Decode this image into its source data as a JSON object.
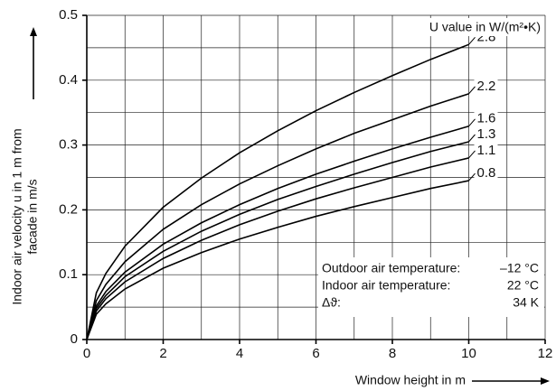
{
  "chart_data": {
    "type": "line",
    "legend_title": "U value in W/(m²•K)",
    "xlabel": "Window height in m",
    "ylabel": [
      "Indoor air velocity u in 1 m from",
      "facade in m/s"
    ],
    "x": [
      0,
      0.25,
      0.5,
      1,
      2,
      3,
      4,
      5,
      6,
      7,
      8,
      9,
      10
    ],
    "series": [
      {
        "name": "2.8",
        "color": "#000000",
        "values": [
          0,
          0.072,
          0.102,
          0.144,
          0.204,
          0.249,
          0.288,
          0.322,
          0.353,
          0.381,
          0.407,
          0.432,
          0.455
        ]
      },
      {
        "name": "2.2",
        "color": "#000000",
        "values": [
          0,
          0.06,
          0.085,
          0.12,
          0.17,
          0.208,
          0.24,
          0.268,
          0.294,
          0.318,
          0.339,
          0.36,
          0.379
        ]
      },
      {
        "name": "1.6",
        "color": "#000000",
        "values": [
          0,
          0.052,
          0.074,
          0.104,
          0.147,
          0.18,
          0.208,
          0.233,
          0.255,
          0.275,
          0.294,
          0.312,
          0.329
        ]
      },
      {
        "name": "1.3",
        "color": "#000000",
        "values": [
          0,
          0.048,
          0.068,
          0.097,
          0.136,
          0.167,
          0.193,
          0.216,
          0.236,
          0.255,
          0.273,
          0.29,
          0.305
        ]
      },
      {
        "name": "1.1",
        "color": "#000000",
        "values": [
          0,
          0.044,
          0.063,
          0.089,
          0.125,
          0.153,
          0.177,
          0.198,
          0.217,
          0.234,
          0.25,
          0.266,
          0.28
        ]
      },
      {
        "name": "0.8",
        "color": "#000000",
        "values": [
          0,
          0.039,
          0.055,
          0.078,
          0.11,
          0.134,
          0.155,
          0.173,
          0.19,
          0.205,
          0.219,
          0.233,
          0.245
        ]
      }
    ],
    "xlim": [
      0,
      12
    ],
    "ylim": [
      0,
      0.5
    ],
    "xticks": [
      0,
      2,
      4,
      6,
      8,
      10,
      12
    ],
    "yticks": [
      0,
      0.1,
      0.2,
      0.3,
      0.4,
      0.5
    ],
    "grid": true,
    "annotations": [
      [
        "Outdoor air temperature:",
        "–12 °C"
      ],
      [
        "Indoor air temperature:",
        "22 °C"
      ],
      [
        "Δϑ:",
        "34 K"
      ]
    ]
  }
}
